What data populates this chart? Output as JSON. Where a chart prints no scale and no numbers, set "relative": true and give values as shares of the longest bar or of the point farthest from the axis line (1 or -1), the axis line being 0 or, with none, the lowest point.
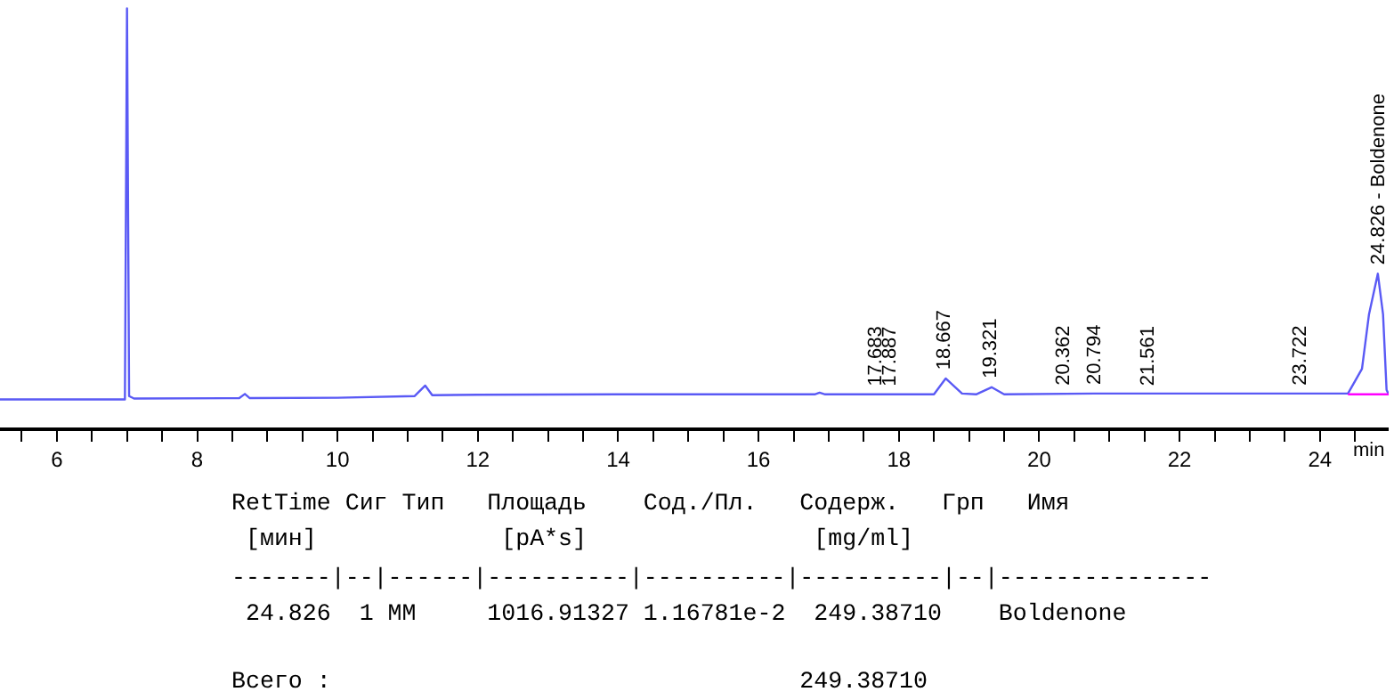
{
  "chart_data": {
    "type": "line",
    "relative": true,
    "xlabel": "min",
    "xlim": [
      5.19,
      24.98
    ],
    "xticks": [
      {
        "value": 5.5,
        "label": null
      },
      6,
      {
        "value": 6.5,
        "label": null
      },
      {
        "value": 7,
        "label": null
      },
      {
        "value": 7.5,
        "label": null
      },
      8,
      {
        "value": 8.5,
        "label": null
      },
      {
        "value": 9,
        "label": null
      },
      {
        "value": 9.5,
        "label": null
      },
      10,
      {
        "value": 10.5,
        "label": null
      },
      {
        "value": 11,
        "label": null
      },
      {
        "value": 11.5,
        "label": null
      },
      12,
      {
        "value": 12.5,
        "label": null
      },
      {
        "value": 13,
        "label": null
      },
      {
        "value": 13.5,
        "label": null
      },
      14,
      {
        "value": 14.5,
        "label": null
      },
      {
        "value": 15,
        "label": null
      },
      {
        "value": 15.5,
        "label": null
      },
      16,
      {
        "value": 16.5,
        "label": null
      },
      {
        "value": 17,
        "label": null
      },
      {
        "value": 17.5,
        "label": null
      },
      18,
      {
        "value": 18.5,
        "label": null
      },
      {
        "value": 19,
        "label": null
      },
      {
        "value": 19.5,
        "label": null
      },
      20,
      {
        "value": 20.5,
        "label": null
      },
      {
        "value": 21,
        "label": null
      },
      {
        "value": 21.5,
        "label": null
      },
      22,
      {
        "value": 22.5,
        "label": null
      },
      {
        "value": 23,
        "label": null
      },
      {
        "value": 23.5,
        "label": null
      },
      24,
      {
        "value": 24.5,
        "label": null
      }
    ],
    "marker": "none",
    "line_style": "solid",
    "series": [
      {
        "color": "#5a5af5",
        "x": [
          5.19,
          6.9,
          6.97,
          7.0,
          7.03,
          7.1,
          8.6,
          8.68,
          8.75,
          10.0,
          11.1,
          11.25,
          11.35,
          12.0,
          14.0,
          16.8,
          16.87,
          16.95,
          17.683,
          17.887,
          18.5,
          18.667,
          18.9,
          19.1,
          19.321,
          19.5,
          20.794,
          23.722,
          24.4,
          24.6,
          24.7,
          24.826,
          24.9,
          24.95,
          24.98
        ],
        "values": [
          0.067,
          0.067,
          0.067,
          1.0,
          0.075,
          0.069,
          0.07,
          0.08,
          0.07,
          0.071,
          0.075,
          0.1,
          0.077,
          0.078,
          0.079,
          0.079,
          0.083,
          0.079,
          0.079,
          0.079,
          0.079,
          0.117,
          0.081,
          0.079,
          0.096,
          0.079,
          0.081,
          0.081,
          0.081,
          0.14,
          0.27,
          0.367,
          0.27,
          0.09,
          0.079
        ]
      },
      {
        "color": "#ff00ff",
        "x": [
          24.4,
          24.98
        ],
        "values": [
          0.079,
          0.079
        ]
      }
    ],
    "annotations": [
      {
        "text": "17.683",
        "x": 17.683,
        "y": 0.079
      },
      {
        "text": "17.887",
        "x": 17.887,
        "y": 0.079
      },
      {
        "text": "18.667",
        "x": 18.667,
        "y": 0.117
      },
      {
        "text": "19.321",
        "x": 19.321,
        "y": 0.096
      },
      {
        "text": "20.362",
        "x": 20.362,
        "y": 0.079
      },
      {
        "text": "20.794",
        "x": 20.794,
        "y": 0.081
      },
      {
        "text": "21.561",
        "x": 21.561,
        "y": 0.079
      },
      {
        "text": "23.722",
        "x": 23.722,
        "y": 0.081
      },
      {
        "text": "24.826 - Boldenone",
        "x": 24.826,
        "y": 0.367
      },
      "RetTime Сиг Тип   Площадь    Сод./Пл.   Содерж.   Грп   Имя",
      " [мин]             [pA*s]                [mg/ml]",
      "-------|--|------|----------|----------|----------|--|---------------",
      " 24.826  1 MM     1016.91327 1.16781e-2  249.38710    Boldenone",
      "Всего :                                 249.38710"
    ]
  }
}
